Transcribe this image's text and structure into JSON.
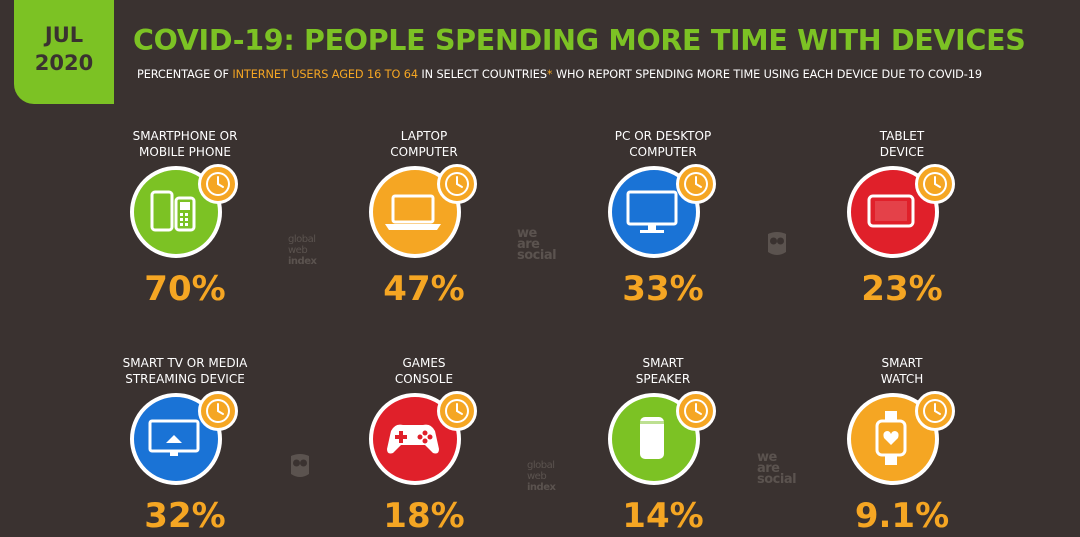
{
  "badge": {
    "month": "JUL",
    "year": "2020"
  },
  "title": "COVID-19: PEOPLE SPENDING MORE TIME WITH DEVICES",
  "subtitle": {
    "part1": "PERCENTAGE OF ",
    "highlight": "INTERNET USERS AGED 16 TO 64",
    "part2": " IN SELECT COUNTRIES",
    "star": "*",
    "part3": " WHO REPORT SPENDING MORE TIME USING EACH DEVICE DUE TO COVID-19"
  },
  "colors": {
    "background": "#3a3230",
    "accent_green": "#7cc224",
    "orange": "#f5a623",
    "blue": "#1a73d6",
    "red": "#e0202a"
  },
  "chart_data": {
    "type": "table",
    "categories": [
      "SMARTPHONE OR MOBILE PHONE",
      "LAPTOP COMPUTER",
      "PC OR DESKTOP COMPUTER",
      "TABLET DEVICE",
      "SMART TV OR MEDIA STREAMING DEVICE",
      "GAMES CONSOLE",
      "SMART SPEAKER",
      "SMART WATCH"
    ],
    "values": [
      70,
      47,
      33,
      23,
      32,
      18,
      14,
      9.1
    ],
    "unit": "%",
    "items": [
      {
        "label_lines": [
          "SMARTPHONE OR",
          "MOBILE PHONE"
        ],
        "value": "70%",
        "icon": "smartphone-icon",
        "color": "#7cc224"
      },
      {
        "label_lines": [
          "LAPTOP",
          "COMPUTER"
        ],
        "value": "47%",
        "icon": "laptop-icon",
        "color": "#f5a623"
      },
      {
        "label_lines": [
          "PC OR DESKTOP",
          "COMPUTER"
        ],
        "value": "33%",
        "icon": "desktop-icon",
        "color": "#1a73d6"
      },
      {
        "label_lines": [
          "TABLET",
          "DEVICE"
        ],
        "value": "23%",
        "icon": "tablet-icon",
        "color": "#e0202a"
      },
      {
        "label_lines": [
          "SMART TV OR MEDIA",
          "STREAMING DEVICE"
        ],
        "value": "32%",
        "icon": "smart-tv-icon",
        "color": "#1a73d6"
      },
      {
        "label_lines": [
          "GAMES",
          "CONSOLE"
        ],
        "value": "18%",
        "icon": "gamepad-icon",
        "color": "#e0202a"
      },
      {
        "label_lines": [
          "SMART",
          "SPEAKER"
        ],
        "value": "14%",
        "icon": "smart-speaker-icon",
        "color": "#7cc224"
      },
      {
        "label_lines": [
          "SMART",
          "WATCH"
        ],
        "value": "9.1%",
        "icon": "smartwatch-icon",
        "color": "#f5a623"
      }
    ]
  },
  "watermarks": {
    "gwi": [
      "global",
      "web",
      "index"
    ],
    "was": [
      "we",
      "are",
      "social"
    ]
  }
}
